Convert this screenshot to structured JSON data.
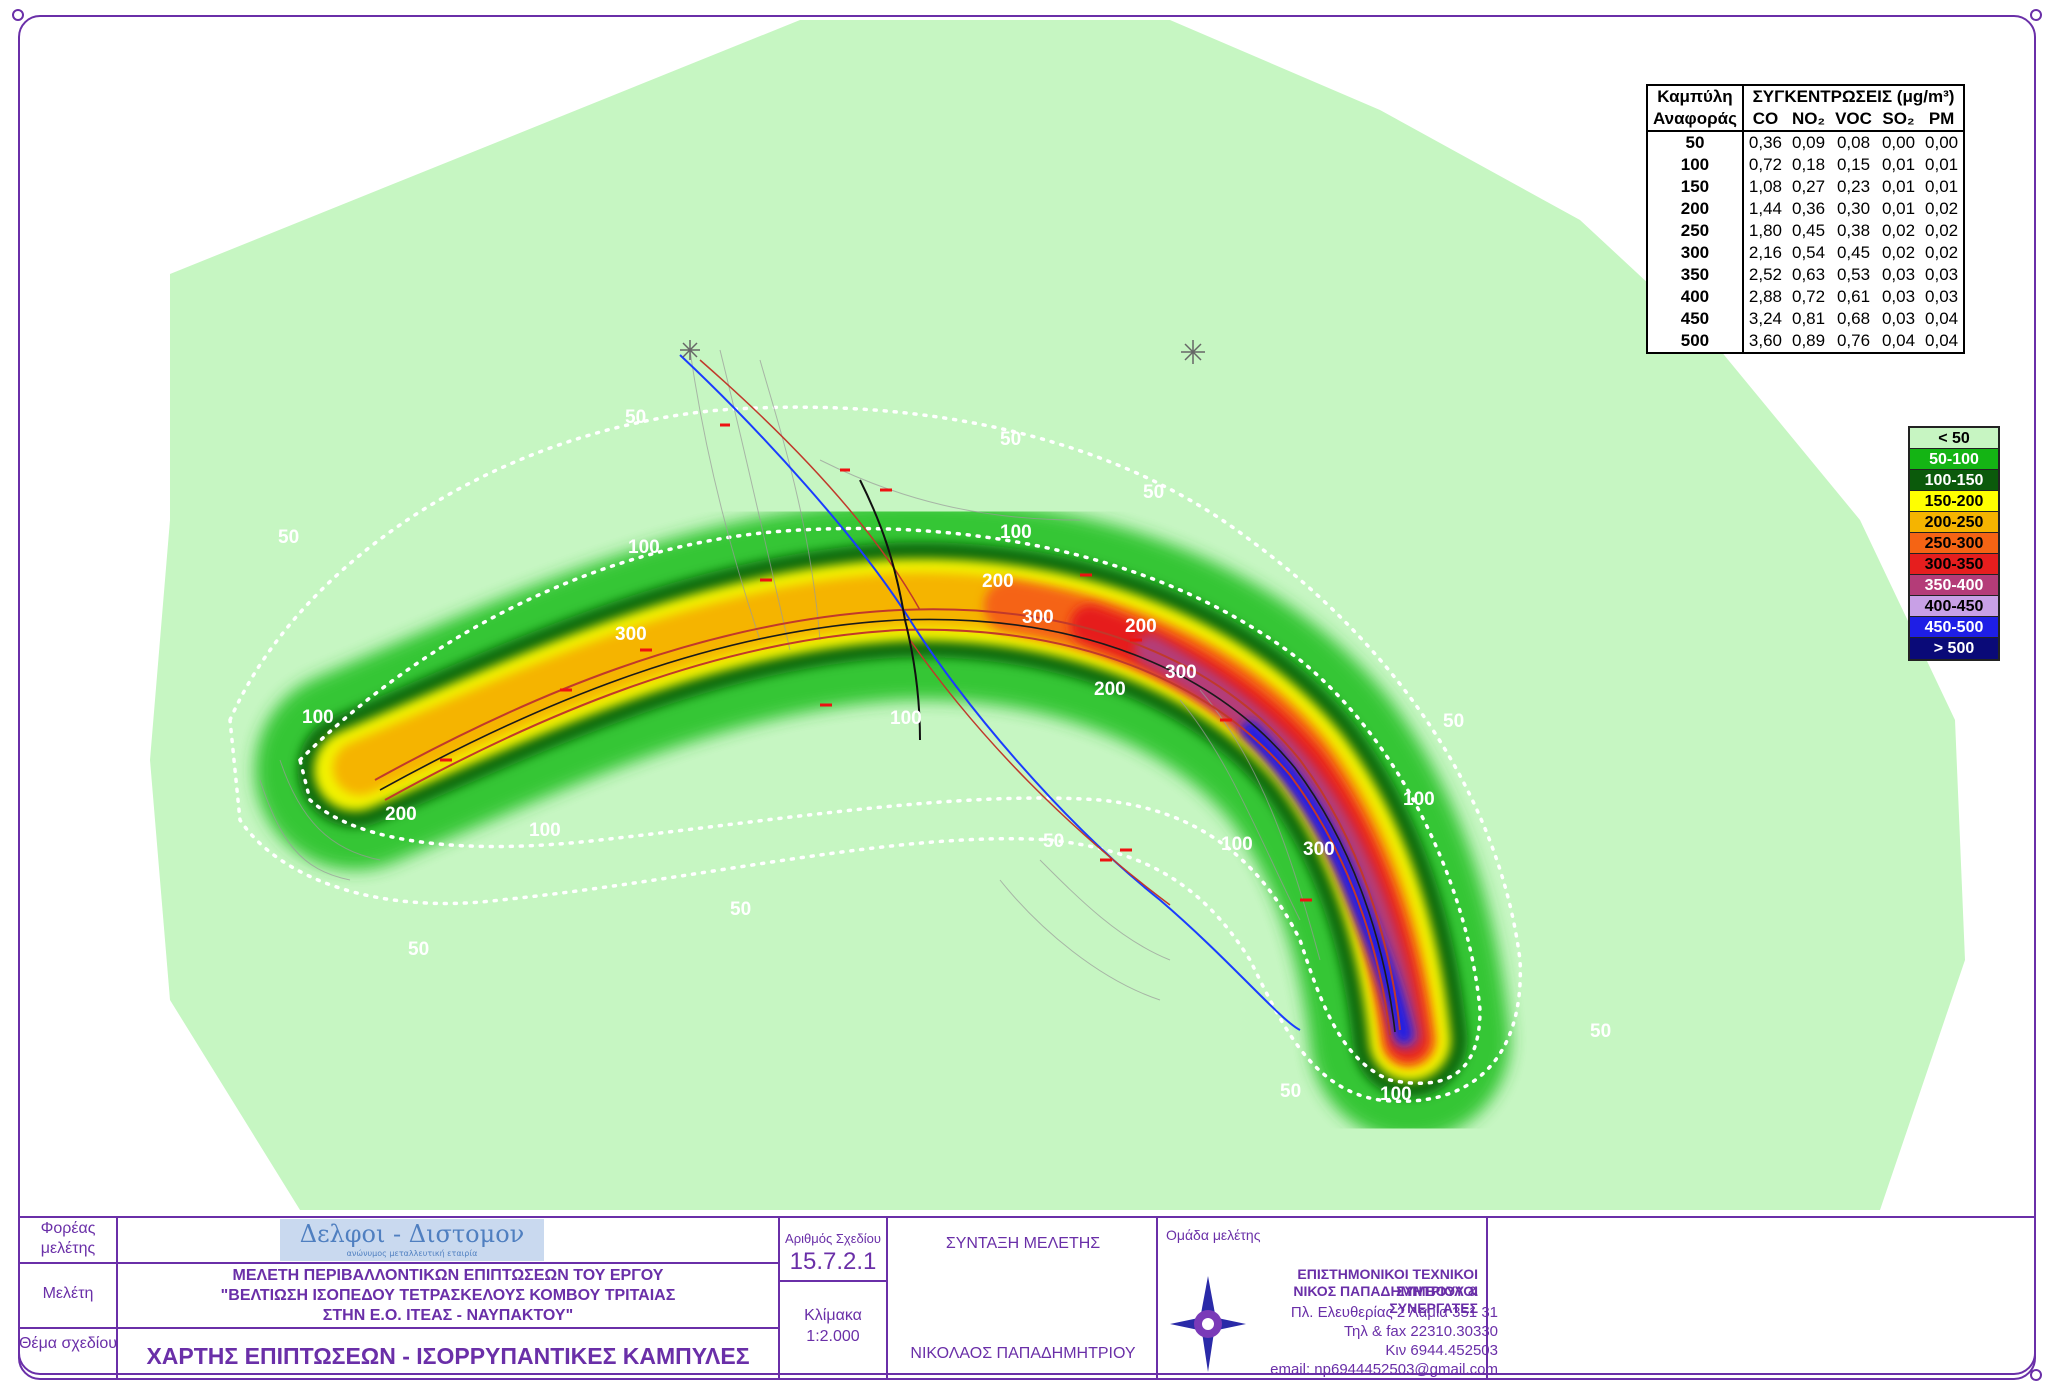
{
  "map": {
    "contour_labels": [
      {
        "text": "50"
      },
      {
        "text": "50"
      },
      {
        "text": "50"
      },
      {
        "text": "50"
      },
      {
        "text": "50"
      },
      {
        "text": "50"
      },
      {
        "text": "50"
      },
      {
        "text": "50"
      },
      {
        "text": "50"
      },
      {
        "text": "50"
      },
      {
        "text": "100"
      },
      {
        "text": "100"
      },
      {
        "text": "100"
      },
      {
        "text": "100"
      },
      {
        "text": "100"
      },
      {
        "text": "100"
      },
      {
        "text": "100"
      },
      {
        "text": "100"
      },
      {
        "text": "200"
      },
      {
        "text": "200"
      },
      {
        "text": "200"
      },
      {
        "text": "200"
      },
      {
        "text": "300"
      },
      {
        "text": "300"
      },
      {
        "text": "300"
      },
      {
        "text": "300"
      }
    ]
  },
  "concentration_table": {
    "col_header_1": "Καμπύλη",
    "col_header_2": "Αναφοράς",
    "group_header": "ΣΥΓΚΕΝΤΡΩΣΕΙΣ (μg/m³)",
    "pollutants": [
      "CO",
      "NO₂",
      "VOC",
      "SO₂",
      "PM"
    ],
    "rows": [
      {
        "curve": "50",
        "values": [
          "0,36",
          "0,09",
          "0,08",
          "0,00",
          "0,00"
        ]
      },
      {
        "curve": "100",
        "values": [
          "0,72",
          "0,18",
          "0,15",
          "0,01",
          "0,01"
        ]
      },
      {
        "curve": "150",
        "values": [
          "1,08",
          "0,27",
          "0,23",
          "0,01",
          "0,01"
        ]
      },
      {
        "curve": "200",
        "values": [
          "1,44",
          "0,36",
          "0,30",
          "0,01",
          "0,02"
        ]
      },
      {
        "curve": "250",
        "values": [
          "1,80",
          "0,45",
          "0,38",
          "0,02",
          "0,02"
        ]
      },
      {
        "curve": "300",
        "values": [
          "2,16",
          "0,54",
          "0,45",
          "0,02",
          "0,02"
        ]
      },
      {
        "curve": "350",
        "values": [
          "2,52",
          "0,63",
          "0,53",
          "0,03",
          "0,03"
        ]
      },
      {
        "curve": "400",
        "values": [
          "2,88",
          "0,72",
          "0,61",
          "0,03",
          "0,03"
        ]
      },
      {
        "curve": "450",
        "values": [
          "3,24",
          "0,81",
          "0,68",
          "0,03",
          "0,04"
        ]
      },
      {
        "curve": "500",
        "values": [
          "3,60",
          "0,89",
          "0,76",
          "0,04",
          "0,04"
        ]
      }
    ]
  },
  "legend": [
    {
      "label": "< 50",
      "color": "#c7f5c2",
      "text_color": "#000000"
    },
    {
      "label": "50-100",
      "color": "#14b414",
      "text_color": "#ffffff"
    },
    {
      "label": "100-150",
      "color": "#0b5a0b",
      "text_color": "#ffffff"
    },
    {
      "label": "150-200",
      "color": "#ffff00",
      "text_color": "#000000"
    },
    {
      "label": "200-250",
      "color": "#f5b400",
      "text_color": "#000000"
    },
    {
      "label": "250-300",
      "color": "#f56414",
      "text_color": "#000000"
    },
    {
      "label": "300-350",
      "color": "#e61e1e",
      "text_color": "#000000"
    },
    {
      "label": "350-400",
      "color": "#b43c78",
      "text_color": "#ffffff"
    },
    {
      "label": "400-450",
      "color": "#c8a0e6",
      "text_color": "#000000"
    },
    {
      "label": "450-500",
      "color": "#1e1ee6",
      "text_color": "#ffffff"
    },
    {
      "label": "> 500",
      "color": "#0a0a78",
      "text_color": "#ffffff"
    }
  ],
  "title_block": {
    "owner_label": "Φορέας μελέτης",
    "logo_text": "Δελφοι - Διστομον",
    "logo_sub": "ανώνυμος μεταλλευτική εταιρία",
    "study_label": "Μελέτη",
    "study_line1": "ΜΕΛΕΤΗ ΠΕΡΙΒΑΛΛΟΝΤΙΚΩΝ ΕΠΙΠΤΩΣΕΩΝ ΤΟΥ ΕΡΓΟΥ",
    "study_line2": "\"ΒΕΛΤΙΩΣΗ ΙΣΟΠΕΔΟΥ ΤΕΤΡΑΣΚΕΛΟΥΣ ΚΟΜΒΟΥ ΤΡΙΤΑΙΑΣ",
    "study_line3": "ΣΤΗΝ Ε.Ο. ΙΤΕΑΣ - ΝΑΥΠΑΚΤΟΥ\"",
    "subject_label": "Θέμα σχεδίου",
    "subject": "ΧΑΡΤΗΣ ΕΠΙΠΤΩΣΕΩΝ - ΙΣΟΡΡΥΠΑΝΤΙΚΕΣ ΚΑΜΠΥΛΕΣ",
    "drawing_no_label": "Αριθμός Σχεδίου",
    "drawing_no": "15.7.2.1",
    "scale_label": "Κλίμακα",
    "scale": "1:2.000",
    "compilation_label": "ΣΥΝΤΑΞΗ ΜΕΛΕΤΗΣ",
    "author": "ΝΙΚΟΛΑΟΣ ΠΑΠΑΔΗΜΗΤΡΙΟΥ",
    "team_label": "Ομάδα μελέτης",
    "team_line1": "ΕΠΙΣΤΗΜΟΝΙΚΟΙ ΤΕΧΝΙΚΟΙ ΣΥΜΒΟΥΛΟΙ",
    "team_line2": "ΝΙΚΟΣ ΠΑΠΑΔΗΜΗΤΡΙΟΥ & ΣΥΝΕΡΓΑΤΕΣ",
    "team_address": "Πλ. Ελευθερίας 2 Λαμία 351 31",
    "team_phone": "Τηλ & fax 22310.30330",
    "team_mobile": "Κιν 6944.452503",
    "team_email": "email: np6944452503@gmail.com"
  }
}
